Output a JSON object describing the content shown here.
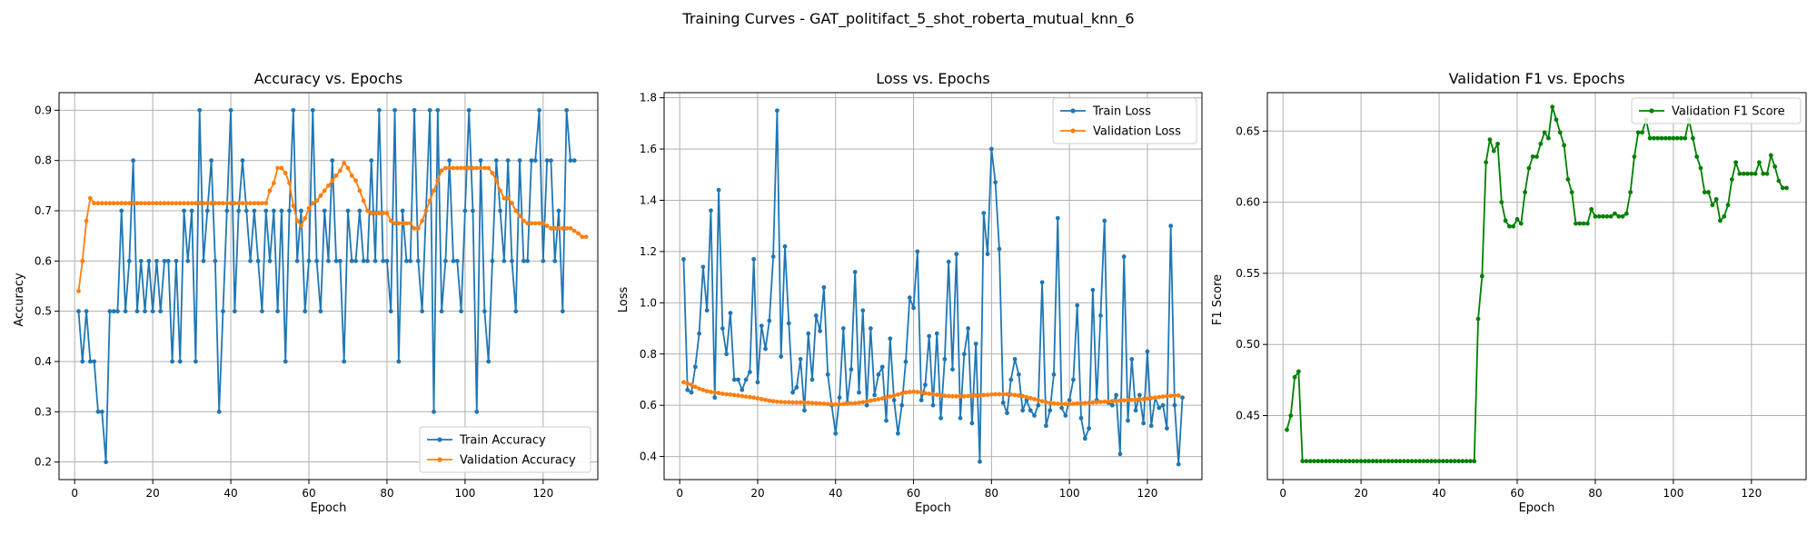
{
  "figure_title": "Training Curves - GAT_politifact_5_shot_roberta_mutual_knn_6",
  "chart_data": [
    {
      "type": "line",
      "title": "Accuracy vs. Epochs",
      "xlabel": "Epoch",
      "ylabel": "Accuracy",
      "xlim": [
        -4,
        134
      ],
      "ylim": [
        0.165,
        0.935
      ],
      "xticks": [
        0,
        20,
        40,
        60,
        80,
        100,
        120
      ],
      "yticks": [
        0.2,
        0.3,
        0.4,
        0.5,
        0.6,
        0.7,
        0.8,
        0.9
      ],
      "ytick_labels": [
        "0.2",
        "0.3",
        "0.4",
        "0.5",
        "0.6",
        "0.7",
        "0.8",
        "0.9"
      ],
      "grid": true,
      "legend": "lower-right",
      "series": [
        {
          "name": "Train Accuracy",
          "color": "#1f77b4",
          "values": [
            0.5,
            0.4,
            0.5,
            0.4,
            0.4,
            0.3,
            0.3,
            0.2,
            0.5,
            0.5,
            0.5,
            0.7,
            0.5,
            0.6,
            0.8,
            0.5,
            0.6,
            0.5,
            0.6,
            0.5,
            0.6,
            0.5,
            0.6,
            0.6,
            0.4,
            0.6,
            0.4,
            0.7,
            0.6,
            0.7,
            0.4,
            0.9,
            0.6,
            0.7,
            0.8,
            0.6,
            0.3,
            0.5,
            0.7,
            0.9,
            0.5,
            0.7,
            0.8,
            0.7,
            0.6,
            0.7,
            0.6,
            0.5,
            0.7,
            0.6,
            0.7,
            0.5,
            0.7,
            0.4,
            0.7,
            0.9,
            0.6,
            0.7,
            0.5,
            0.6,
            0.9,
            0.6,
            0.5,
            0.7,
            0.6,
            0.8,
            0.6,
            0.6,
            0.4,
            0.7,
            0.6,
            0.6,
            0.7,
            0.6,
            0.6,
            0.8,
            0.6,
            0.9,
            0.6,
            0.6,
            0.5,
            0.9,
            0.4,
            0.7,
            0.6,
            0.6,
            0.9,
            0.6,
            0.5,
            0.7,
            0.9,
            0.3,
            0.9,
            0.5,
            0.6,
            0.8,
            0.6,
            0.6,
            0.5,
            0.7,
            0.9,
            0.7,
            0.3,
            0.8,
            0.5,
            0.4,
            0.6,
            0.8,
            0.7,
            0.6,
            0.8,
            0.6,
            0.5,
            0.8,
            0.6,
            0.6,
            0.8,
            0.8,
            0.9,
            0.6,
            0.8,
            0.8,
            0.6,
            0.7,
            0.5,
            0.9,
            0.8,
            0.8
          ]
        },
        {
          "name": "Validation Accuracy",
          "color": "#ff7f0e",
          "values": [
            0.54,
            0.6,
            0.68,
            0.725,
            0.715,
            0.715,
            0.715,
            0.715,
            0.715,
            0.715,
            0.715,
            0.715,
            0.715,
            0.715,
            0.715,
            0.715,
            0.715,
            0.715,
            0.715,
            0.715,
            0.715,
            0.715,
            0.715,
            0.715,
            0.715,
            0.715,
            0.715,
            0.715,
            0.715,
            0.715,
            0.715,
            0.715,
            0.715,
            0.715,
            0.715,
            0.715,
            0.715,
            0.715,
            0.715,
            0.715,
            0.715,
            0.715,
            0.715,
            0.715,
            0.715,
            0.715,
            0.715,
            0.715,
            0.715,
            0.74,
            0.755,
            0.785,
            0.785,
            0.775,
            0.755,
            0.71,
            0.68,
            0.67,
            0.685,
            0.705,
            0.715,
            0.72,
            0.73,
            0.74,
            0.75,
            0.76,
            0.77,
            0.78,
            0.795,
            0.785,
            0.77,
            0.76,
            0.74,
            0.72,
            0.7,
            0.695,
            0.695,
            0.695,
            0.695,
            0.695,
            0.68,
            0.675,
            0.675,
            0.675,
            0.675,
            0.675,
            0.665,
            0.665,
            0.68,
            0.7,
            0.72,
            0.74,
            0.76,
            0.78,
            0.785,
            0.785,
            0.785,
            0.785,
            0.785,
            0.785,
            0.785,
            0.785,
            0.785,
            0.785,
            0.785,
            0.785,
            0.775,
            0.76,
            0.74,
            0.725,
            0.725,
            0.715,
            0.7,
            0.69,
            0.68,
            0.675,
            0.675,
            0.675,
            0.675,
            0.675,
            0.67,
            0.665,
            0.665,
            0.665,
            0.665,
            0.665,
            0.665,
            0.66,
            0.655,
            0.648,
            0.648
          ]
        }
      ]
    },
    {
      "type": "line",
      "title": "Loss vs. Epochs",
      "xlabel": "Epoch",
      "ylabel": "Loss",
      "xlim": [
        -4,
        134
      ],
      "ylim": [
        0.31,
        1.82
      ],
      "xticks": [
        0,
        20,
        40,
        60,
        80,
        100,
        120
      ],
      "yticks": [
        0.4,
        0.6,
        0.8,
        1.0,
        1.2,
        1.4,
        1.6,
        1.8
      ],
      "ytick_labels": [
        "0.4",
        "0.6",
        "0.8",
        "1.0",
        "1.2",
        "1.4",
        "1.6",
        "1.8"
      ],
      "grid": true,
      "legend": "upper-right",
      "series": [
        {
          "name": "Train Loss",
          "color": "#1f77b4",
          "values": [
            1.17,
            0.66,
            0.65,
            0.75,
            0.88,
            1.14,
            0.97,
            1.36,
            0.63,
            1.44,
            0.9,
            0.8,
            0.96,
            0.7,
            0.7,
            0.66,
            0.7,
            0.73,
            1.17,
            0.69,
            0.91,
            0.82,
            0.93,
            1.18,
            1.75,
            0.79,
            1.22,
            0.92,
            0.65,
            0.67,
            0.78,
            0.58,
            0.88,
            0.7,
            0.95,
            0.89,
            1.06,
            0.72,
            0.6,
            0.49,
            0.63,
            0.9,
            0.61,
            0.74,
            1.12,
            0.65,
            0.97,
            0.6,
            0.9,
            0.64,
            0.72,
            0.75,
            0.54,
            0.86,
            0.62,
            0.49,
            0.6,
            0.77,
            1.02,
            0.98,
            1.2,
            0.62,
            0.68,
            0.87,
            0.6,
            0.88,
            0.55,
            0.78,
            1.16,
            0.74,
            1.19,
            0.55,
            0.8,
            0.9,
            0.53,
            0.84,
            0.38,
            1.35,
            1.19,
            1.6,
            1.47,
            1.21,
            0.61,
            0.57,
            0.7,
            0.78,
            0.72,
            0.58,
            0.62,
            0.58,
            0.56,
            0.6,
            1.08,
            0.52,
            0.58,
            0.72,
            1.33,
            0.59,
            0.56,
            0.62,
            0.7,
            0.99,
            0.55,
            0.47,
            0.51,
            1.05,
            0.62,
            0.95,
            1.32,
            0.61,
            0.6,
            0.64,
            0.41,
            1.18,
            0.54,
            0.78,
            0.58,
            0.64,
            0.53,
            0.81,
            0.52,
            0.63,
            0.59,
            0.6,
            0.51,
            1.3,
            0.6,
            0.37,
            0.63
          ]
        },
        {
          "name": "Validation Loss",
          "color": "#ff7f0e",
          "values": [
            0.69,
            0.685,
            0.68,
            0.672,
            0.665,
            0.66,
            0.655,
            0.652,
            0.65,
            0.648,
            0.645,
            0.643,
            0.642,
            0.64,
            0.638,
            0.636,
            0.634,
            0.632,
            0.63,
            0.627,
            0.624,
            0.621,
            0.618,
            0.616,
            0.614,
            0.613,
            0.612,
            0.612,
            0.611,
            0.611,
            0.611,
            0.61,
            0.61,
            0.609,
            0.608,
            0.607,
            0.606,
            0.605,
            0.604,
            0.603,
            0.604,
            0.605,
            0.606,
            0.607,
            0.608,
            0.61,
            0.612,
            0.615,
            0.618,
            0.621,
            0.624,
            0.627,
            0.63,
            0.634,
            0.638,
            0.642,
            0.646,
            0.65,
            0.652,
            0.653,
            0.652,
            0.65,
            0.647,
            0.645,
            0.643,
            0.641,
            0.639,
            0.637,
            0.636,
            0.635,
            0.635,
            0.635,
            0.635,
            0.636,
            0.637,
            0.638,
            0.639,
            0.64,
            0.641,
            0.642,
            0.643,
            0.643,
            0.643,
            0.643,
            0.642,
            0.64,
            0.638,
            0.636,
            0.632,
            0.628,
            0.624,
            0.62,
            0.616,
            0.612,
            0.609,
            0.607,
            0.606,
            0.605,
            0.605,
            0.605,
            0.606,
            0.607,
            0.608,
            0.609,
            0.61,
            0.611,
            0.612,
            0.613,
            0.614,
            0.615,
            0.616,
            0.617,
            0.618,
            0.619,
            0.62,
            0.621,
            0.622,
            0.623,
            0.624,
            0.626,
            0.628,
            0.63,
            0.632,
            0.634,
            0.636,
            0.637,
            0.638,
            0.638
          ]
        }
      ]
    },
    {
      "type": "line",
      "title": "Validation F1 vs. Epochs",
      "xlabel": "Epoch",
      "ylabel": "F1 Score",
      "xlim": [
        -4,
        134
      ],
      "ylim": [
        0.405,
        0.677
      ],
      "xticks": [
        0,
        20,
        40,
        60,
        80,
        100,
        120
      ],
      "yticks": [
        0.45,
        0.5,
        0.55,
        0.6,
        0.65
      ],
      "ytick_labels": [
        "0.45",
        "0.50",
        "0.55",
        "0.60",
        "0.65"
      ],
      "grid": true,
      "legend": "upper-right",
      "series": [
        {
          "name": "Validation F1 Score",
          "color": "#008000",
          "values": [
            0.44,
            0.45,
            0.477,
            0.481,
            0.418,
            0.418,
            0.418,
            0.418,
            0.418,
            0.418,
            0.418,
            0.418,
            0.418,
            0.418,
            0.418,
            0.418,
            0.418,
            0.418,
            0.418,
            0.418,
            0.418,
            0.418,
            0.418,
            0.418,
            0.418,
            0.418,
            0.418,
            0.418,
            0.418,
            0.418,
            0.418,
            0.418,
            0.418,
            0.418,
            0.418,
            0.418,
            0.418,
            0.418,
            0.418,
            0.418,
            0.418,
            0.418,
            0.418,
            0.418,
            0.418,
            0.418,
            0.418,
            0.418,
            0.418,
            0.518,
            0.548,
            0.628,
            0.644,
            0.636,
            0.641,
            0.6,
            0.587,
            0.583,
            0.583,
            0.588,
            0.585,
            0.607,
            0.624,
            0.632,
            0.632,
            0.641,
            0.649,
            0.645,
            0.667,
            0.658,
            0.649,
            0.64,
            0.616,
            0.607,
            0.585,
            0.585,
            0.585,
            0.585,
            0.595,
            0.59,
            0.59,
            0.59,
            0.59,
            0.59,
            0.592,
            0.59,
            0.59,
            0.592,
            0.607,
            0.632,
            0.649,
            0.649,
            0.658,
            0.645,
            0.645,
            0.645,
            0.645,
            0.645,
            0.645,
            0.645,
            0.645,
            0.645,
            0.645,
            0.658,
            0.645,
            0.632,
            0.624,
            0.607,
            0.607,
            0.598,
            0.602,
            0.587,
            0.59,
            0.598,
            0.616,
            0.628,
            0.62,
            0.62,
            0.62,
            0.62,
            0.62,
            0.628,
            0.62,
            0.62,
            0.633,
            0.625,
            0.615,
            0.61,
            0.61
          ]
        }
      ]
    }
  ]
}
